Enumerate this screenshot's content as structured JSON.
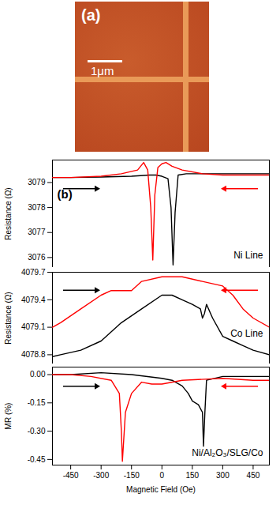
{
  "panel_a": {
    "label": "(a)",
    "scale_bar": "1μm"
  },
  "chart_data": [
    {
      "type": "line",
      "title": "Ni Line",
      "annotations": [
        "(b)"
      ],
      "ylabel": "Resistance (Ω)",
      "xlim": [
        -540,
        530
      ],
      "xticks": [
        -450,
        -300,
        -150,
        0,
        150,
        300,
        450
      ],
      "ylim": [
        3075.6,
        3079.9
      ],
      "yticks": [
        3076,
        3077,
        3078,
        3079
      ],
      "tick_labels": "y",
      "series": [
        {
          "color": "#000000",
          "x": [
            -540,
            -450,
            -300,
            -150,
            -60,
            -30,
            0,
            30,
            45,
            55,
            65,
            80,
            120,
            200,
            300,
            450,
            530
          ],
          "values": [
            3079.2,
            3079.2,
            3079.22,
            3079.25,
            3079.3,
            3079.3,
            3079.25,
            3079.15,
            3078.0,
            3075.7,
            3077.8,
            3079.3,
            3079.35,
            3079.35,
            3079.35,
            3079.35,
            3079.35
          ]
        },
        {
          "color": "#ff0000",
          "x": [
            530,
            450,
            300,
            200,
            100,
            50,
            20,
            0,
            -20,
            -35,
            -45,
            -55,
            -70,
            -90,
            -120,
            -200,
            -300,
            -450,
            -540
          ],
          "values": [
            3079.3,
            3079.3,
            3079.3,
            3079.35,
            3079.5,
            3079.65,
            3079.8,
            3079.75,
            3079.6,
            3078.5,
            3075.9,
            3078.0,
            3079.5,
            3079.8,
            3079.5,
            3079.35,
            3079.25,
            3079.2,
            3079.2
          ]
        }
      ]
    },
    {
      "type": "line",
      "title": "Co Line",
      "ylabel": "Resistance (Ω)",
      "xlim": [
        -540,
        530
      ],
      "xticks": [
        -450,
        -300,
        -150,
        0,
        150,
        300,
        450
      ],
      "ylim": [
        4078.7,
        4079.7
      ],
      "yticks": [
        4078.8,
        4079.1,
        4079.4,
        4079.7
      ],
      "tick_labels": "y",
      "series": [
        {
          "color": "#000000",
          "x": [
            -540,
            -500,
            -400,
            -300,
            -200,
            -100,
            0,
            50,
            100,
            150,
            190,
            200,
            210,
            220,
            250,
            300,
            350,
            400,
            450,
            530
          ],
          "values": [
            4078.78,
            4078.8,
            4078.85,
            4078.95,
            4079.15,
            4079.3,
            4079.45,
            4079.45,
            4079.4,
            4079.35,
            4079.3,
            4079.2,
            4079.25,
            4079.35,
            4079.2,
            4079.0,
            4078.95,
            4078.9,
            4078.85,
            4078.8
          ]
        },
        {
          "color": "#ff0000",
          "x": [
            530,
            450,
            400,
            350,
            300,
            200,
            100,
            0,
            -100,
            -150,
            -250,
            -300,
            -400,
            -500,
            -540
          ],
          "values": [
            4079.1,
            4079.2,
            4079.3,
            4079.45,
            4079.55,
            4079.6,
            4079.65,
            4079.65,
            4079.6,
            4079.5,
            4079.5,
            4079.45,
            4079.3,
            4079.15,
            4079.1
          ]
        }
      ]
    },
    {
      "type": "line",
      "title": "Ni/Al₂O₃/SLG/Co",
      "ylabel": "MR (%)",
      "xlabel": "Magnetic Field (Oe)",
      "xlim": [
        -540,
        530
      ],
      "xticks": [
        -450,
        -300,
        -150,
        0,
        150,
        300,
        450
      ],
      "ylim": [
        -0.48,
        0.04
      ],
      "yticks": [
        {
          "value": 0,
          "label": "0.00"
        },
        -0.15,
        {
          "value": -0.3,
          "label": "-0.30"
        },
        -0.45
      ],
      "series": [
        {
          "color": "#000000",
          "x": [
            -540,
            -450,
            -300,
            -150,
            0,
            50,
            100,
            130,
            150,
            180,
            200,
            205,
            212,
            220,
            300,
            450,
            530
          ],
          "values": [
            0.0,
            0.0,
            0.01,
            0.0,
            -0.02,
            -0.03,
            -0.06,
            -0.1,
            -0.14,
            -0.16,
            -0.2,
            -0.38,
            -0.2,
            -0.03,
            -0.01,
            -0.01,
            -0.01
          ]
        },
        {
          "color": "#ff0000",
          "x": [
            530,
            450,
            300,
            100,
            0,
            -50,
            -100,
            -150,
            -180,
            -195,
            -200,
            -210,
            -250,
            -350,
            -450,
            -540
          ],
          "values": [
            -0.03,
            -0.03,
            -0.02,
            -0.03,
            -0.05,
            -0.05,
            -0.04,
            -0.1,
            -0.2,
            -0.46,
            -0.3,
            -0.1,
            -0.03,
            -0.01,
            0.0,
            0.0
          ]
        }
      ]
    }
  ]
}
